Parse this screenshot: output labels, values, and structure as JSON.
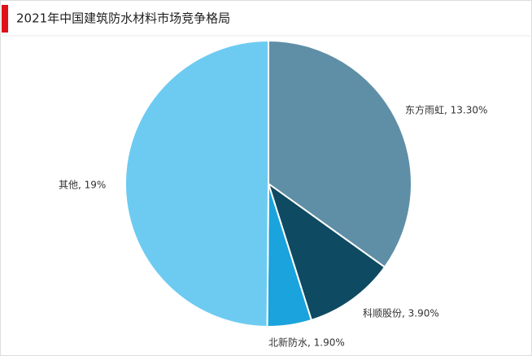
{
  "chart_data": {
    "type": "pie",
    "title": "2021年中国建筑防水材料市场竞争格局",
    "values": [
      13.3,
      3.9,
      1.9,
      19
    ],
    "value_labels": [
      "东方雨虹, 13.30%",
      "科顺股份, 3.90%",
      "北新防水, 1.90%",
      "其他, 19%"
    ],
    "colors": [
      "#5f8fa6",
      "#0e4a62",
      "#1aa3dc",
      "#6dcbf1"
    ]
  }
}
